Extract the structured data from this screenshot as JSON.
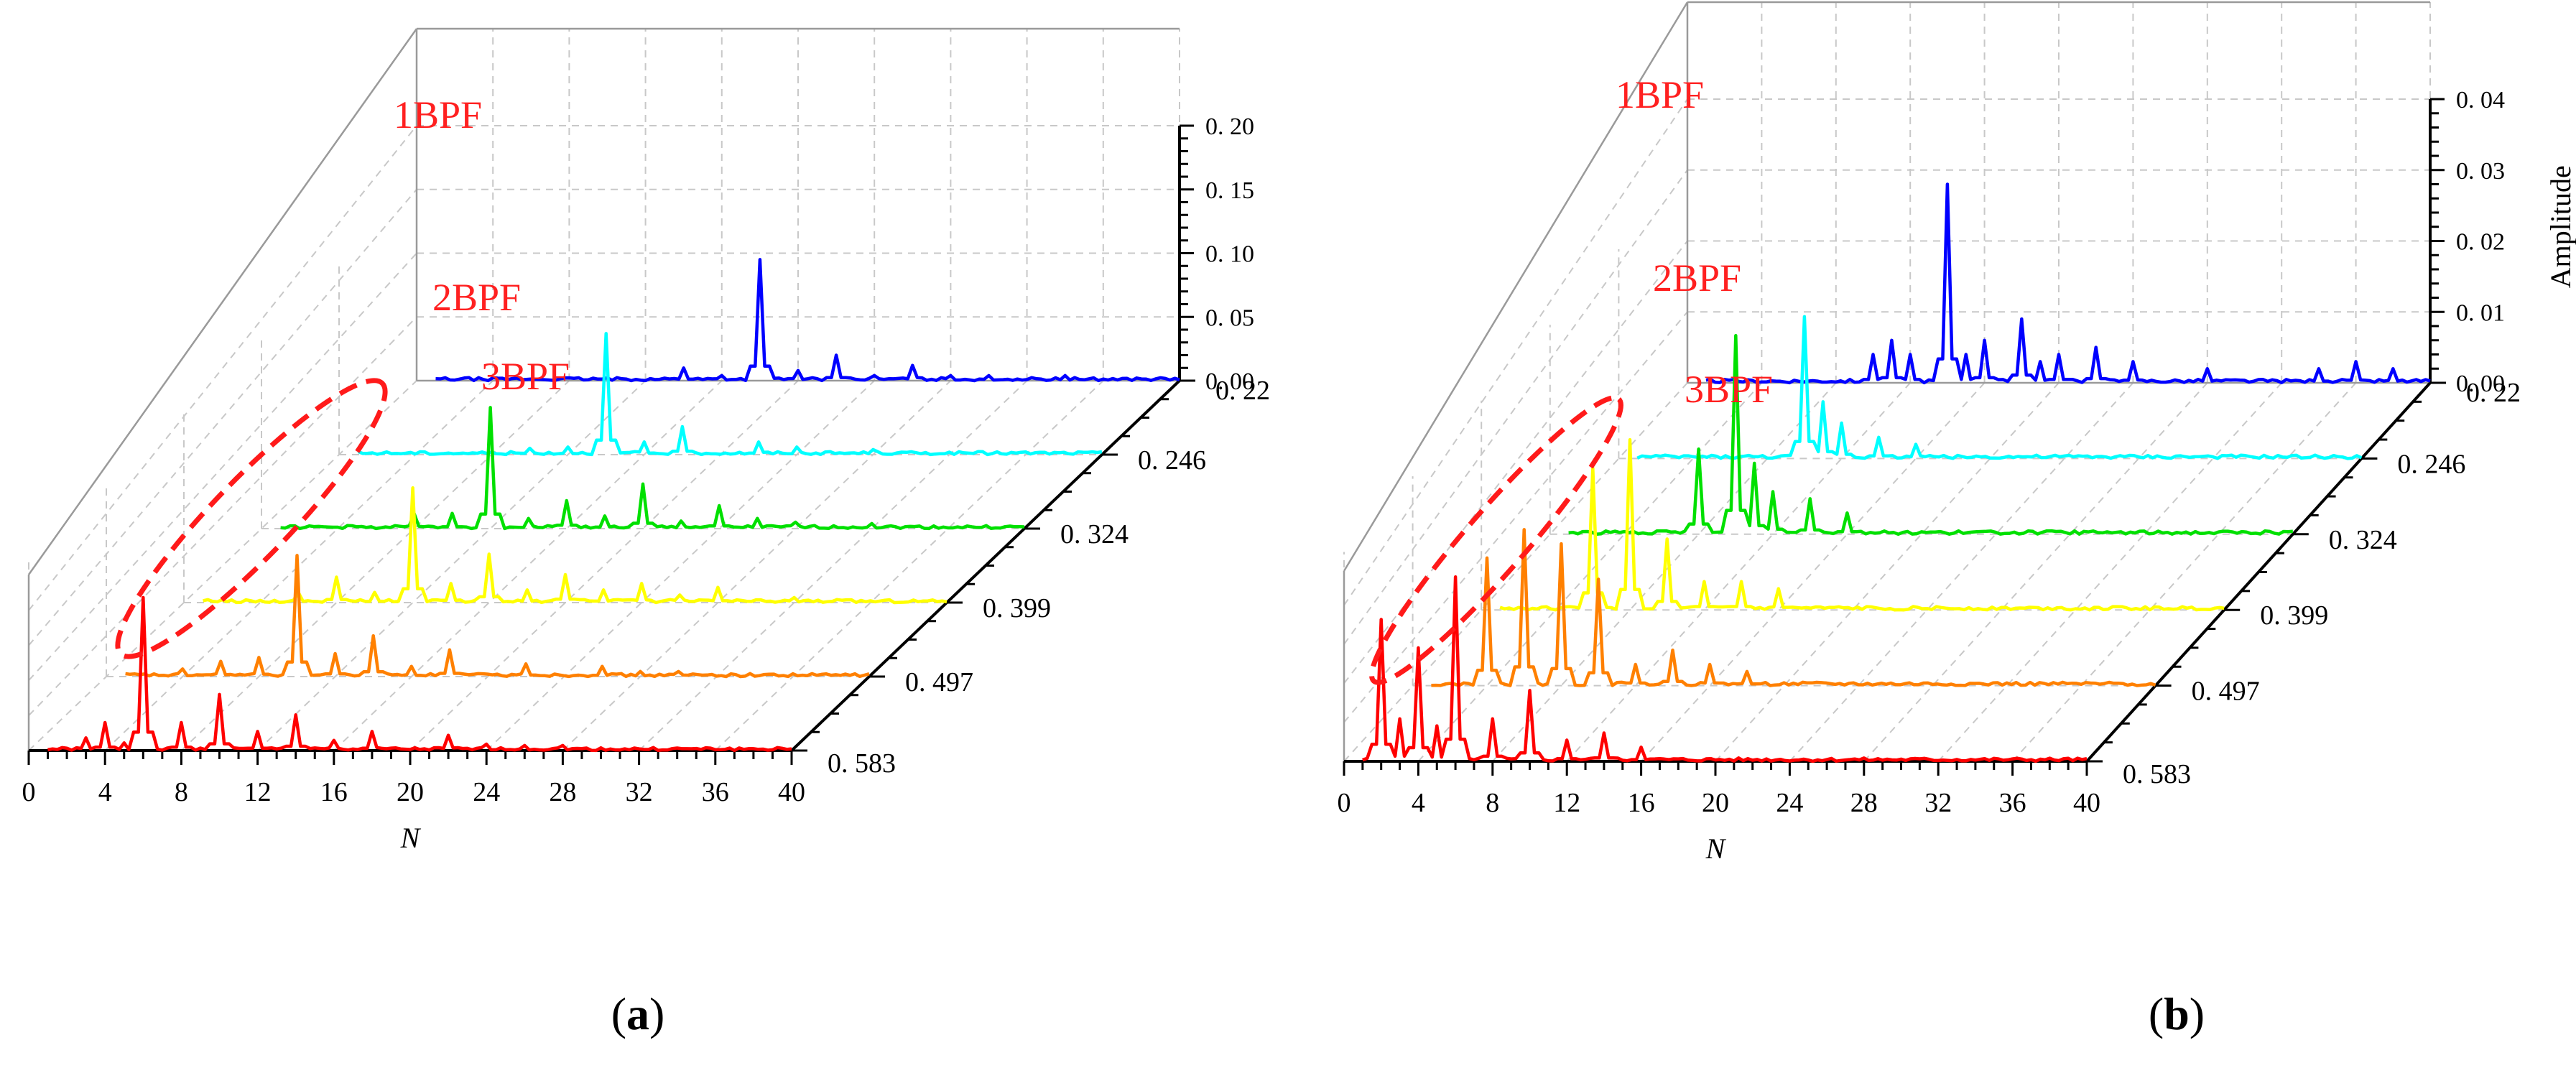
{
  "figure": {
    "captions": [
      "a",
      "b"
    ]
  },
  "chart_data": [
    {
      "id": "a",
      "type": "line",
      "style": "3d-waterfall",
      "xlabel": "N",
      "zlabel": "Amplitude",
      "xticks": [
        "0",
        "4",
        "8",
        "12",
        "16",
        "20",
        "24",
        "28",
        "32",
        "36",
        "40"
      ],
      "zticks": [
        "0. 00",
        "0. 05",
        "0. 10",
        "0. 15",
        "0. 20"
      ],
      "zlim": [
        0,
        0.2
      ],
      "xlim": [
        0,
        40
      ],
      "series": [
        {
          "name": "0. 583",
          "color": "#ff0000",
          "peaks": [
            [
              3,
              0.01
            ],
            [
              4,
              0.022
            ],
            [
              5,
              0.006
            ],
            [
              6,
              0.12
            ],
            [
              8,
              0.022
            ],
            [
              10,
              0.044
            ],
            [
              12,
              0.015
            ],
            [
              14,
              0.028
            ],
            [
              16,
              0.008
            ],
            [
              18,
              0.015
            ],
            [
              22,
              0.012
            ],
            [
              24,
              0.005
            ],
            [
              26,
              0.004
            ],
            [
              28,
              0.004
            ]
          ]
        },
        {
          "name": "0. 497",
          "color": "#ff8000",
          "peaks": [
            [
              4,
              0.006
            ],
            [
              6,
              0.012
            ],
            [
              8,
              0.015
            ],
            [
              10,
              0.095
            ],
            [
              12,
              0.018
            ],
            [
              14,
              0.032
            ],
            [
              16,
              0.008
            ],
            [
              18,
              0.021
            ],
            [
              22,
              0.01
            ],
            [
              26,
              0.008
            ],
            [
              28,
              0.004
            ],
            [
              30,
              0.004
            ]
          ]
        },
        {
          "name": "0. 399",
          "color": "#ffff00",
          "peaks": [
            [
              6,
              0.008
            ],
            [
              8,
              0.02
            ],
            [
              10,
              0.008
            ],
            [
              12,
              0.09
            ],
            [
              14,
              0.015
            ],
            [
              16,
              0.038
            ],
            [
              18,
              0.01
            ],
            [
              20,
              0.022
            ],
            [
              22,
              0.01
            ],
            [
              24,
              0.015
            ],
            [
              26,
              0.006
            ],
            [
              28,
              0.012
            ],
            [
              32,
              0.004
            ]
          ]
        },
        {
          "name": "0. 324",
          "color": "#00e000",
          "peaks": [
            [
              8,
              0.012
            ],
            [
              10,
              0.012
            ],
            [
              12,
              0.095
            ],
            [
              14,
              0.008
            ],
            [
              16,
              0.022
            ],
            [
              18,
              0.01
            ],
            [
              20,
              0.035
            ],
            [
              22,
              0.006
            ],
            [
              24,
              0.018
            ],
            [
              26,
              0.008
            ],
            [
              28,
              0.005
            ],
            [
              32,
              0.004
            ]
          ]
        },
        {
          "name": "0. 246",
          "color": "#00ffff",
          "peaks": [
            [
              10,
              0.005
            ],
            [
              12,
              0.006
            ],
            [
              14,
              0.095
            ],
            [
              16,
              0.01
            ],
            [
              18,
              0.022
            ],
            [
              22,
              0.01
            ],
            [
              24,
              0.006
            ],
            [
              28,
              0.004
            ]
          ]
        },
        {
          "name": "0. 22",
          "color": "#0000ff",
          "peaks": [
            [
              14,
              0.01
            ],
            [
              16,
              0.004
            ],
            [
              18,
              0.095
            ],
            [
              20,
              0.008
            ],
            [
              22,
              0.02
            ],
            [
              24,
              0.004
            ],
            [
              26,
              0.012
            ],
            [
              28,
              0.004
            ],
            [
              30,
              0.004
            ],
            [
              34,
              0.004
            ]
          ]
        }
      ],
      "annotations": [
        "1BPF",
        "2BPF",
        "3BPF"
      ]
    },
    {
      "id": "b",
      "type": "line",
      "style": "3d-waterfall",
      "xlabel": "N",
      "zlabel": "Amplitude",
      "xticks": [
        "0",
        "4",
        "8",
        "12",
        "16",
        "20",
        "24",
        "28",
        "32",
        "36",
        "40"
      ],
      "zticks": [
        "0. 00",
        "0. 01",
        "0. 02",
        "0. 03",
        "0. 04"
      ],
      "zlim": [
        0,
        0.04
      ],
      "xlim": [
        0,
        40
      ],
      "series": [
        {
          "name": "0. 583",
          "color": "#ff0000",
          "peaks": [
            [
              2,
              0.02
            ],
            [
              3,
              0.006
            ],
            [
              4,
              0.016
            ],
            [
              5,
              0.005
            ],
            [
              6,
              0.026
            ],
            [
              8,
              0.006
            ],
            [
              10,
              0.01
            ],
            [
              12,
              0.003
            ],
            [
              14,
              0.004
            ],
            [
              16,
              0.002
            ]
          ]
        },
        {
          "name": "0. 497",
          "color": "#ff8000",
          "peaks": [
            [
              4,
              0.018
            ],
            [
              6,
              0.022
            ],
            [
              8,
              0.02
            ],
            [
              10,
              0.015
            ],
            [
              12,
              0.003
            ],
            [
              14,
              0.005
            ],
            [
              16,
              0.003
            ],
            [
              18,
              0.002
            ]
          ]
        },
        {
          "name": "0. 399",
          "color": "#ffff00",
          "peaks": [
            [
              6,
              0.02
            ],
            [
              8,
              0.024
            ],
            [
              10,
              0.01
            ],
            [
              12,
              0.004
            ],
            [
              14,
              0.004
            ],
            [
              16,
              0.003
            ]
          ]
        },
        {
          "name": "0. 324",
          "color": "#00e000",
          "peaks": [
            [
              8,
              0.012
            ],
            [
              10,
              0.028
            ],
            [
              11,
              0.01
            ],
            [
              12,
              0.006
            ],
            [
              14,
              0.005
            ],
            [
              16,
              0.003
            ]
          ]
        },
        {
          "name": "0. 246",
          "color": "#00ffff",
          "peaks": [
            [
              10,
              0.02
            ],
            [
              11,
              0.008
            ],
            [
              12,
              0.005
            ],
            [
              14,
              0.003
            ],
            [
              16,
              0.002
            ]
          ]
        },
        {
          "name": "0. 22",
          "color": "#0000ff",
          "peaks": [
            [
              10,
              0.004
            ],
            [
              11,
              0.006
            ],
            [
              12,
              0.004
            ],
            [
              14,
              0.028
            ],
            [
              15,
              0.004
            ],
            [
              16,
              0.006
            ],
            [
              18,
              0.009
            ],
            [
              19,
              0.003
            ],
            [
              20,
              0.004
            ],
            [
              22,
              0.005
            ],
            [
              24,
              0.003
            ],
            [
              28,
              0.002
            ],
            [
              34,
              0.002
            ],
            [
              36,
              0.003
            ],
            [
              38,
              0.002
            ]
          ]
        }
      ],
      "annotations": [
        "1BPF",
        "2BPF",
        "3BPF"
      ]
    }
  ]
}
